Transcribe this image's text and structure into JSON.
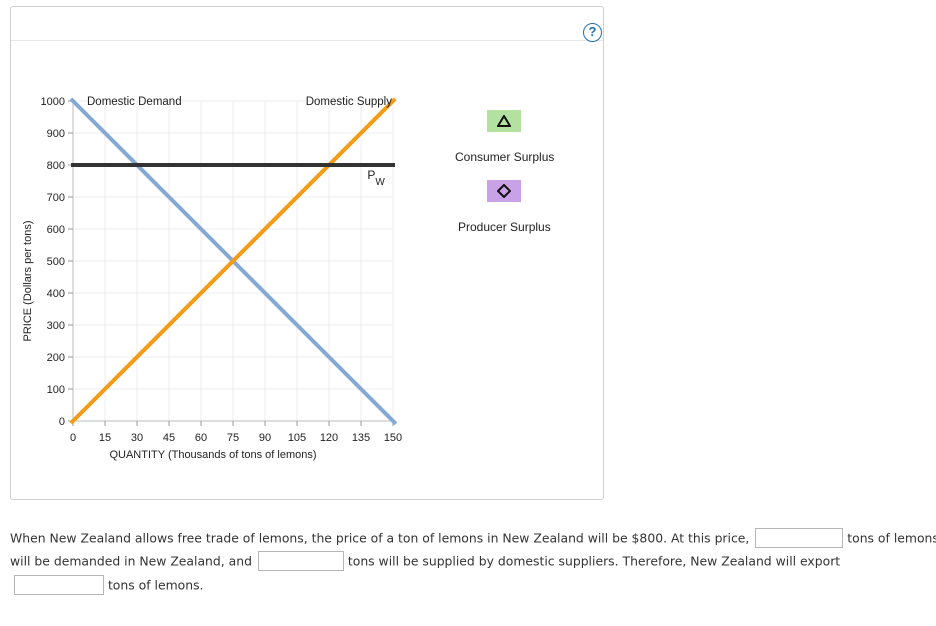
{
  "help_icon": {
    "glyph": "?",
    "icon": "question-mark-icon",
    "color": "#1f6fb2"
  },
  "graph": {
    "y_axis_label": "PRICE (Dollars per tons)",
    "x_axis_label": "QUANTITY (Thousands of tons of lemons)",
    "y_ticks": [
      "0",
      "100",
      "200",
      "300",
      "400",
      "500",
      "600",
      "700",
      "800",
      "900",
      "1000"
    ],
    "x_ticks": [
      "0",
      "15",
      "30",
      "45",
      "60",
      "75",
      "90",
      "105",
      "120",
      "135",
      "150"
    ],
    "demand_label": "Domestic Demand",
    "supply_label": "Domestic Supply",
    "world_price_label_main": "P",
    "world_price_label_sub": "W",
    "colors": {
      "demand": "#86a9d3",
      "supply": "#f59b16",
      "world_price": "#333333"
    }
  },
  "chart_data": {
    "type": "line",
    "xlabel": "QUANTITY (Thousands of tons of lemons)",
    "ylabel": "PRICE (Dollars per tons)",
    "xlim": [
      0,
      150
    ],
    "ylim": [
      0,
      1000
    ],
    "series": [
      {
        "name": "Domestic Demand",
        "x": [
          0,
          150
        ],
        "y": [
          1000,
          0
        ]
      },
      {
        "name": "Domestic Supply",
        "x": [
          0,
          150
        ],
        "y": [
          0,
          1000
        ]
      },
      {
        "name": "PW",
        "x": [
          0,
          150
        ],
        "y": [
          800,
          800
        ]
      }
    ]
  },
  "legend": {
    "items": [
      {
        "label": "Consumer Surplus",
        "icon": "triangle-icon",
        "color": "#b3e1a0"
      },
      {
        "label": "Producer Surplus",
        "icon": "diamond-icon",
        "color": "#c8a1e6"
      }
    ]
  },
  "question": {
    "line1_text": "When New Zealand allows free trade of lemons, the price of a ton of lemons in New Zealand will be $800. At this price,",
    "line1_tail": "tons of lemons",
    "line2_text": "will be demanded in New Zealand, and",
    "line2_tail": "tons will be supplied by domestic suppliers. Therefore, New Zealand will export",
    "line3_tail": "tons of lemons.",
    "answer1": "",
    "answer2": "",
    "answer3": ""
  }
}
